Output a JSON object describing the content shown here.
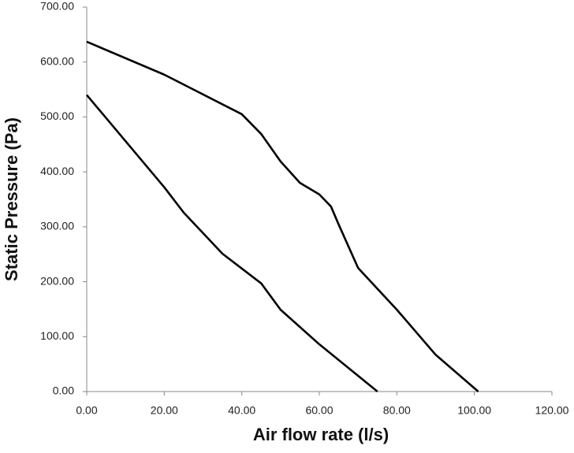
{
  "chart_data": {
    "type": "line",
    "xlabel": "Air flow rate (l/s)",
    "ylabel": "Static Pressure (Pa)",
    "series": [
      {
        "color": "#000000",
        "x": [
          0,
          20,
          40,
          45,
          50,
          55,
          60,
          63,
          65,
          70,
          80,
          90,
          101
        ],
        "values": [
          637,
          577,
          505,
          469,
          419,
          380,
          359,
          337,
          304,
          225,
          149,
          67,
          0
        ]
      },
      {
        "color": "#000000",
        "x": [
          0,
          20,
          25,
          35,
          45,
          50,
          60,
          75
        ],
        "values": [
          540,
          372,
          326,
          251,
          197,
          149,
          86,
          0
        ]
      }
    ],
    "xlim": [
      0,
      120
    ],
    "ylim": [
      0,
      700
    ],
    "xticks": [
      {
        "value": 0,
        "label": "0.00"
      },
      {
        "value": 20,
        "label": "20.00"
      },
      {
        "value": 40,
        "label": "40.00"
      },
      {
        "value": 60,
        "label": "60.00"
      },
      {
        "value": 80,
        "label": "80.00"
      },
      {
        "value": 100,
        "label": "100.00"
      },
      {
        "value": 120,
        "label": "120.00"
      }
    ],
    "yticks": [
      {
        "value": 0,
        "label": "0.00"
      },
      {
        "value": 100,
        "label": "100.00"
      },
      {
        "value": 200,
        "label": "200.00"
      },
      {
        "value": 300,
        "label": "300.00"
      },
      {
        "value": 400,
        "label": "400.00"
      },
      {
        "value": 500,
        "label": "500.00"
      },
      {
        "value": 600,
        "label": "600.00"
      },
      {
        "value": 700,
        "label": "700.00"
      }
    ],
    "grid": false
  }
}
